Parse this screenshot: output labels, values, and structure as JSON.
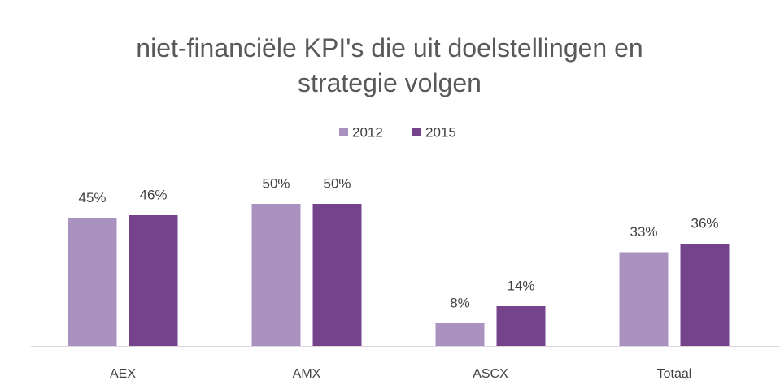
{
  "chart_data": {
    "type": "bar",
    "title": "niet-financiële KPI's die uit doelstellingen en strategie volgen",
    "categories": [
      "AEX",
      "AMX",
      "ASCX",
      "Totaal"
    ],
    "series": [
      {
        "name": "2012",
        "color": "#a992bf",
        "values": [
          45,
          50,
          8,
          33
        ],
        "value_labels": [
          "45%",
          "50%",
          "8%",
          "33%"
        ]
      },
      {
        "name": "2015",
        "color": "#74438c",
        "values": [
          46,
          50,
          14,
          36
        ],
        "value_labels": [
          "46%",
          "50%",
          "14%",
          "36%"
        ]
      }
    ],
    "ylim": [
      0,
      100
    ],
    "legend": "top"
  }
}
